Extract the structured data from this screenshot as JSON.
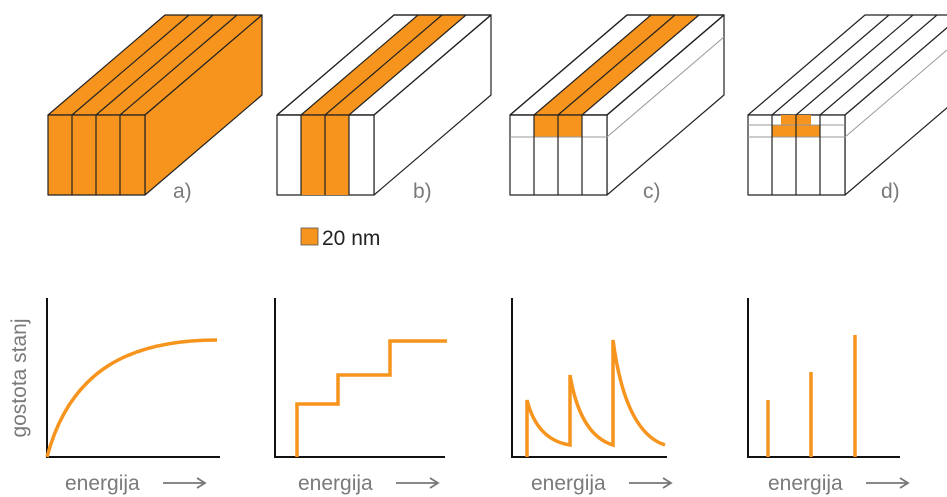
{
  "panels": [
    {
      "label": "a)",
      "x_label": "energija"
    },
    {
      "label": "b)",
      "x_label": "energija"
    },
    {
      "label": "c)",
      "x_label": "energija"
    },
    {
      "label": "d)",
      "x_label": "energija"
    }
  ],
  "legend": {
    "label": "20 nm"
  },
  "y_label": "gostota stanj"
}
